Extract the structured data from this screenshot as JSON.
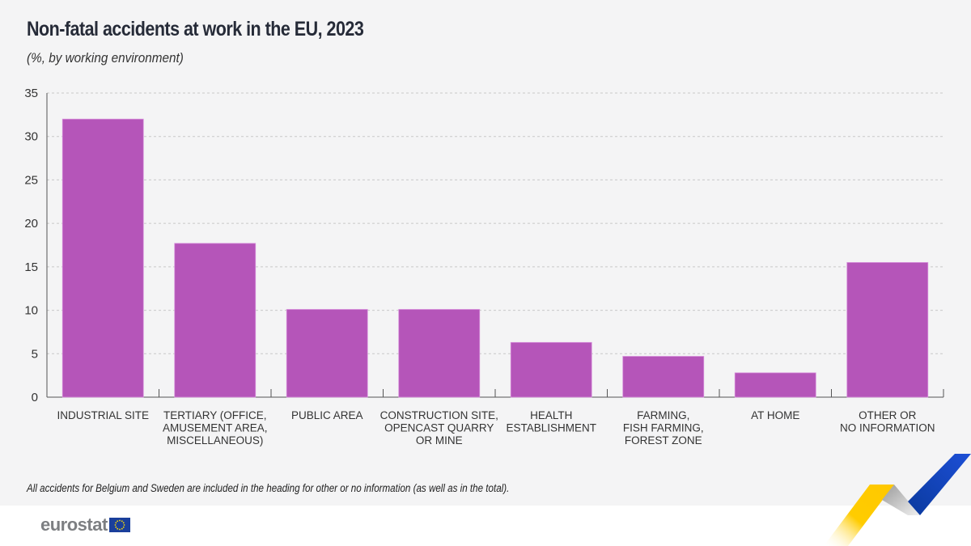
{
  "header": {
    "title": "Non-fatal accidents at work in the EU, 2023",
    "subtitle": "(%, by working environment)"
  },
  "chart_data": {
    "type": "bar",
    "title": "Non-fatal accidents at work in the EU, 2023",
    "subtitle": "(%, by working environment)",
    "xlabel": "",
    "ylabel": "",
    "ylim": [
      0,
      35
    ],
    "yticks": [
      0,
      5,
      10,
      15,
      20,
      25,
      30,
      35
    ],
    "grid": true,
    "legend": "none",
    "bar_color": "#b555b9",
    "categories": [
      [
        "INDUSTRIAL SITE"
      ],
      [
        "TERTIARY (OFFICE,",
        "AMUSEMENT AREA,",
        "MISCELLANEOUS)"
      ],
      [
        "PUBLIC AREA"
      ],
      [
        "CONSTRUCTION SITE,",
        "OPENCAST QUARRY",
        "OR MINE"
      ],
      [
        "HEALTH",
        "ESTABLISHMENT"
      ],
      [
        "FARMING,",
        "FISH FARMING,",
        "FOREST ZONE"
      ],
      [
        "AT HOME"
      ],
      [
        "OTHER OR",
        "NO INFORMATION"
      ]
    ],
    "values": [
      32.0,
      17.7,
      10.1,
      10.1,
      6.3,
      4.7,
      2.8,
      15.5
    ]
  },
  "footer": {
    "note": "All accidents for Belgium and Sweden are included in the heading for other or no information (as well as in the total).",
    "logo_text": "eurostat"
  }
}
